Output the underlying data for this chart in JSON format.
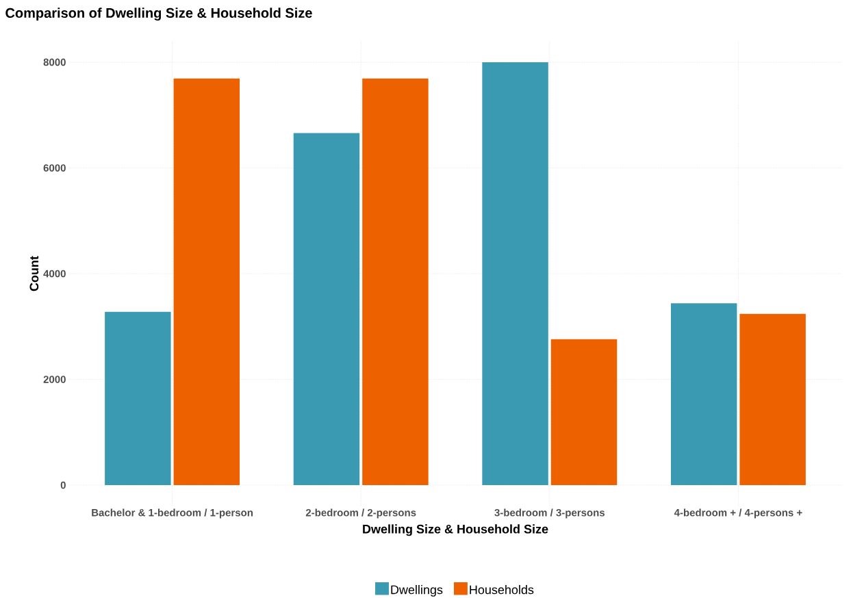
{
  "chart_data": {
    "type": "bar",
    "title": "Comparison of Dwelling Size & Household Size",
    "xlabel": "Dwelling Size & Household Size",
    "ylabel": "Count",
    "categories": [
      "Bachelor & 1-bedroom / 1-person",
      "2-bedroom / 2-persons",
      "3-bedroom / 3-persons",
      "4-bedroom + / 4-persons +"
    ],
    "series": [
      {
        "name": "Dwellings",
        "color": "#3a9ab2",
        "values": [
          3280,
          6660,
          8000,
          3440
        ]
      },
      {
        "name": "Households",
        "color": "#ee6100",
        "values": [
          7690,
          7690,
          2760,
          3240
        ]
      }
    ],
    "ylim": [
      -400,
      8400
    ],
    "yticks": [
      0,
      2000,
      4000,
      6000,
      8000
    ],
    "grid": true,
    "legend": "bottom"
  }
}
